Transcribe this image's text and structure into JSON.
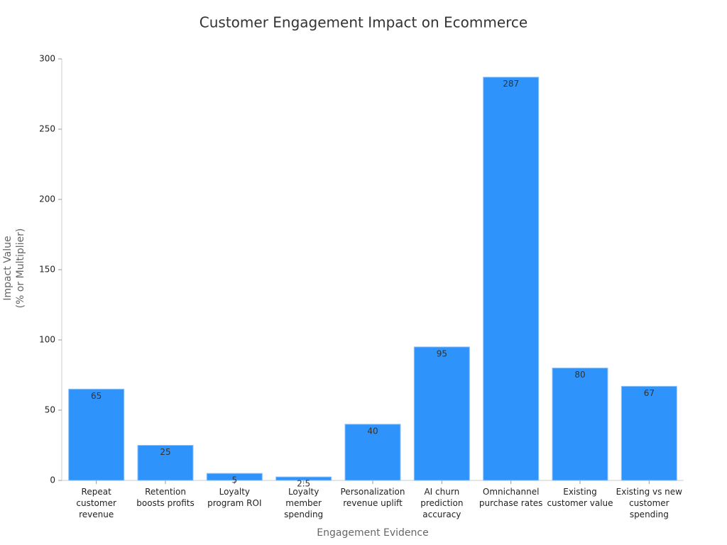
{
  "chart_data": {
    "type": "bar",
    "title": "Customer Engagement Impact on Ecommerce",
    "xlabel": "Engagement Evidence",
    "ylabel": "Impact Value\n(% or Multiplier)",
    "categories": [
      "Repeat customer revenue",
      "Retention boosts profits",
      "Loyalty program ROI",
      "Loyalty member spending",
      "Personalization revenue uplift",
      "AI churn prediction accuracy",
      "Omnichannel purchase rates",
      "Existing customer value",
      "Existing vs new customer spending"
    ],
    "values": [
      65,
      25,
      5,
      2.5,
      40,
      95,
      287,
      80,
      67
    ],
    "color": "#2e93fa",
    "ylim": [
      0,
      300
    ],
    "yticks": [
      0,
      50,
      100,
      150,
      200,
      250,
      300
    ],
    "grid": false
  }
}
